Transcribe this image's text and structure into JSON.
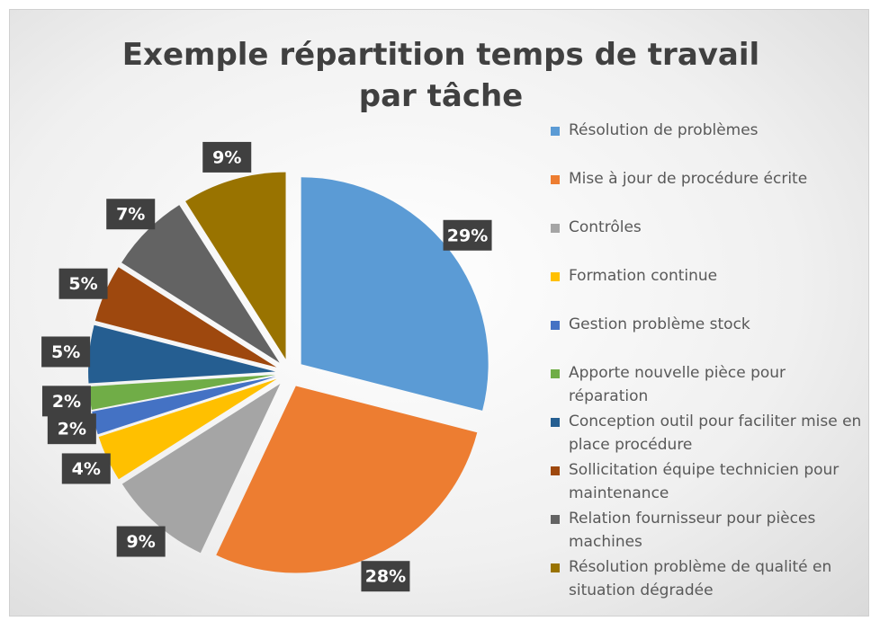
{
  "chart_data": {
    "type": "pie",
    "title": "Exemple répartition temps de travail par tâche",
    "categories": [
      "Résolution de problèmes",
      "Mise à jour de procédure écrite",
      "Contrôles",
      "Formation continue",
      "Gestion problème stock",
      "Apporte nouvelle pièce pour réparation",
      "Conception outil pour faciliter mise en place procédure",
      "Sollicitation équipe technicien pour maintenance",
      "Relation fournisseur pour pièces machines",
      "Résolution problème de qualité en situation dégradée"
    ],
    "values": [
      29,
      28,
      9,
      4,
      2,
      2,
      5,
      5,
      7,
      9
    ],
    "value_labels": [
      "29%",
      "28%",
      "9%",
      "4%",
      "2%",
      "2%",
      "5%",
      "5%",
      "7%",
      "9%"
    ],
    "colors": [
      "#5b9bd5",
      "#ed7d31",
      "#a5a5a5",
      "#ffc000",
      "#4472c4",
      "#70ad47",
      "#255e91",
      "#9e480e",
      "#636363",
      "#997300"
    ],
    "legend": "right"
  }
}
